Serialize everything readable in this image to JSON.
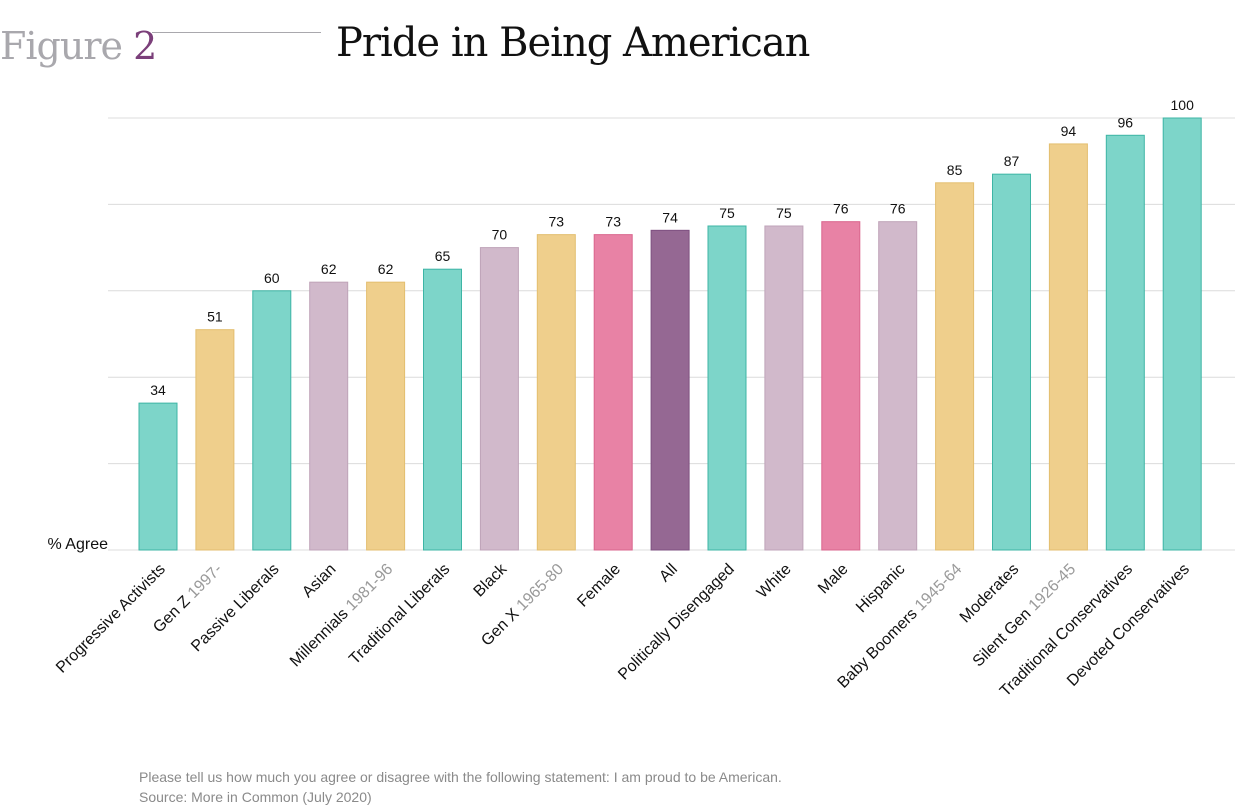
{
  "header": {
    "figure_label": "Figure",
    "figure_number": "2",
    "title": "Pride in Being American"
  },
  "chart_data": {
    "type": "bar",
    "title": "Pride in Being American",
    "ylabel": "% Agree",
    "ylim": [
      0,
      100
    ],
    "grid": true,
    "categories": [
      {
        "name": "Progressive Activists",
        "sub": ""
      },
      {
        "name": "Gen Z",
        "sub": "1997-"
      },
      {
        "name": "Passive Liberals",
        "sub": ""
      },
      {
        "name": "Asian",
        "sub": ""
      },
      {
        "name": "Millennials",
        "sub": "1981-96"
      },
      {
        "name": "Traditional Liberals",
        "sub": ""
      },
      {
        "name": "Black",
        "sub": ""
      },
      {
        "name": "Gen X",
        "sub": "1965-80"
      },
      {
        "name": "Female",
        "sub": ""
      },
      {
        "name": "All",
        "sub": ""
      },
      {
        "name": "Politically Disengaged",
        "sub": ""
      },
      {
        "name": "White",
        "sub": ""
      },
      {
        "name": "Male",
        "sub": ""
      },
      {
        "name": "Hispanic",
        "sub": ""
      },
      {
        "name": "Baby Boomers",
        "sub": "1945-64"
      },
      {
        "name": "Moderates",
        "sub": ""
      },
      {
        "name": "Silent Gen",
        "sub": "1926-45"
      },
      {
        "name": "Traditional Conservatives",
        "sub": ""
      },
      {
        "name": "Devoted Conservatives",
        "sub": ""
      }
    ],
    "values": [
      34,
      51,
      60,
      62,
      62,
      65,
      70,
      73,
      73,
      74,
      75,
      75,
      76,
      76,
      85,
      87,
      94,
      96,
      100
    ],
    "groups": [
      "segment",
      "generation",
      "segment",
      "race",
      "generation",
      "segment",
      "race",
      "generation",
      "gender",
      "all",
      "segment",
      "race",
      "gender",
      "race",
      "generation",
      "segment",
      "generation",
      "segment",
      "segment"
    ],
    "colors": {
      "segment": "#7dd5c9",
      "generation": "#efcf8c",
      "race": "#d1b9cb",
      "gender": "#e882a5",
      "all": "#956893"
    }
  },
  "footer": {
    "question": "Please tell us how much you agree or disagree with the following statement: I am proud to be American.",
    "source": "Source: More in Common (July 2020)"
  }
}
